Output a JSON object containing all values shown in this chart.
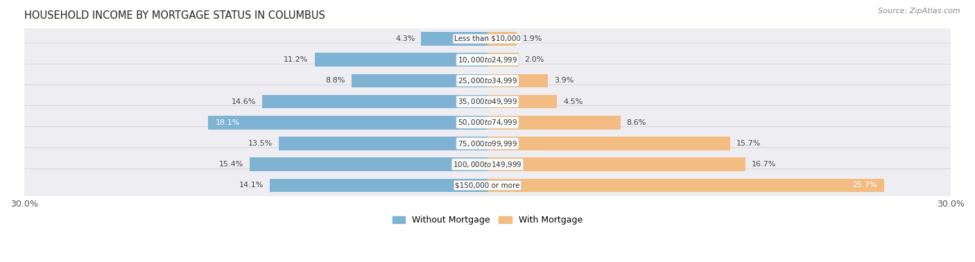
{
  "title": "HOUSEHOLD INCOME BY MORTGAGE STATUS IN COLUMBUS",
  "source": "Source: ZipAtlas.com",
  "categories": [
    "Less than $10,000",
    "$10,000 to $24,999",
    "$25,000 to $34,999",
    "$35,000 to $49,999",
    "$50,000 to $74,999",
    "$75,000 to $99,999",
    "$100,000 to $149,999",
    "$150,000 or more"
  ],
  "without_mortgage": [
    4.3,
    11.2,
    8.8,
    14.6,
    18.1,
    13.5,
    15.4,
    14.1
  ],
  "with_mortgage": [
    1.9,
    2.0,
    3.9,
    4.5,
    8.6,
    15.7,
    16.7,
    25.7
  ],
  "color_without": "#7fb3d3",
  "color_with": "#f2bc82",
  "axis_max": 30.0,
  "row_bg_color": "#eeeef2",
  "row_bg_color_alt": "#f5f5f8",
  "legend_label_without": "Without Mortgage",
  "legend_label_with": "With Mortgage",
  "title_fontsize": 10.5,
  "source_fontsize": 8,
  "label_fontsize": 8,
  "cat_fontsize": 7.5
}
